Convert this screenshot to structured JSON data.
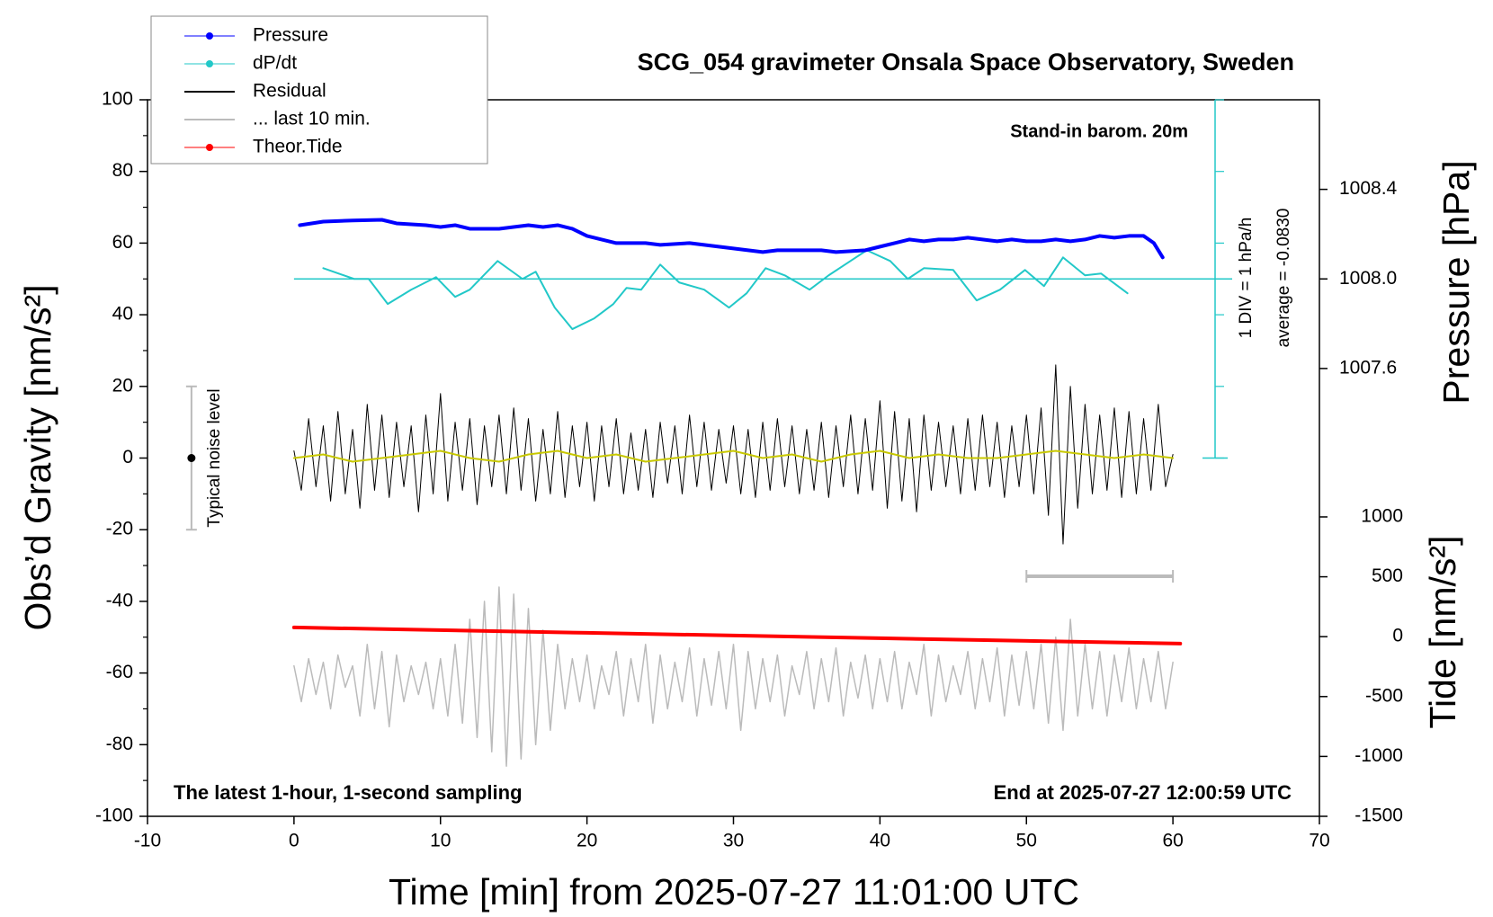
{
  "chart_data": {
    "type": "line",
    "title": "SCG_054 gravimeter Onsala Space Observatory, Sweden",
    "x_label": "Time [min] from 2025-07-27 11:01:00 UTC",
    "y_label": "Obs’d Gravity [nm/s²]",
    "y2_label": "Pressure [hPa]",
    "y3_label": "Tide [nm/s²]",
    "xlim": [
      -10,
      70
    ],
    "xticks": [
      -10,
      0,
      10,
      20,
      30,
      40,
      50,
      60,
      70
    ],
    "ylim": [
      -100,
      100
    ],
    "yticks": [
      -100,
      -80,
      -60,
      -40,
      -20,
      0,
      20,
      40,
      60,
      80,
      100
    ],
    "y2lim": [
      1005.6,
      1008.8
    ],
    "y2ticks": [
      1007.6,
      {
        "value": 1008.0,
        "label": "1008.0"
      },
      1008.4
    ],
    "y3lim": [
      -1500,
      4483
    ],
    "y3ticks": [
      -1500,
      -1000,
      -500,
      0,
      500,
      1000
    ],
    "legend": "top-left",
    "series": [
      {
        "name": "... last 10 min.",
        "color": "#bbbbbb",
        "axis": "y",
        "width": 1.5,
        "legend_marker": false,
        "x": [
          0,
          0.5,
          1,
          1.5,
          2,
          2.5,
          3,
          3.5,
          4,
          4.5,
          5,
          5.5,
          6,
          6.5,
          7,
          7.5,
          8,
          8.5,
          9,
          9.5,
          10,
          10.5,
          11,
          11.5,
          12,
          12.5,
          13,
          13.5,
          14,
          14.5,
          15,
          15.5,
          16,
          16.5,
          17,
          17.5,
          18,
          18.5,
          19,
          19.5,
          20,
          20.5,
          21,
          21.5,
          22,
          22.5,
          23,
          23.5,
          24,
          24.5,
          25,
          25.5,
          26,
          26.5,
          27,
          27.5,
          28,
          28.5,
          29,
          29.5,
          30,
          30.5,
          31,
          31.5,
          32,
          32.5,
          33,
          33.5,
          34,
          34.5,
          35,
          35.5,
          36,
          36.5,
          37,
          37.5,
          38,
          38.5,
          39,
          39.5,
          40,
          40.5,
          41,
          41.5,
          42,
          42.5,
          43,
          43.5,
          44,
          44.5,
          45,
          45.5,
          46,
          46.5,
          47,
          47.5,
          48,
          48.5,
          49,
          49.5,
          50,
          50.5,
          51,
          51.5,
          52,
          52.5,
          53,
          53.5,
          54,
          54.5,
          55,
          55.5,
          56,
          56.5,
          57,
          57.5,
          58,
          58.5,
          59,
          59.5,
          60
        ],
        "values": [
          -58,
          -68,
          -56,
          -66,
          -57,
          -70,
          -55,
          -64,
          -58,
          -72,
          -52,
          -70,
          -54,
          -75,
          -55,
          -68,
          -58,
          -66,
          -57,
          -70,
          -56,
          -72,
          -52,
          -74,
          -45,
          -78,
          -40,
          -82,
          -36,
          -86,
          -38,
          -84,
          -42,
          -80,
          -48,
          -76,
          -52,
          -70,
          -56,
          -68,
          -55,
          -70,
          -58,
          -66,
          -54,
          -72,
          -56,
          -68,
          -52,
          -74,
          -55,
          -70,
          -57,
          -68,
          -53,
          -72,
          -56,
          -69,
          -54,
          -70,
          -52,
          -76,
          -54,
          -70,
          -56,
          -68,
          -55,
          -72,
          -58,
          -66,
          -54,
          -70,
          -56,
          -68,
          -53,
          -72,
          -57,
          -67,
          -55,
          -70,
          -56,
          -68,
          -54,
          -70,
          -57,
          -66,
          -52,
          -72,
          -55,
          -68,
          -58,
          -66,
          -54,
          -70,
          -56,
          -68,
          -53,
          -72,
          -55,
          -69,
          -54,
          -70,
          -52,
          -74,
          -50,
          -76,
          -45,
          -72,
          -52,
          -70,
          -54,
          -72,
          -55,
          -68,
          -53,
          -70,
          -56,
          -68,
          -54,
          -70,
          -57
        ]
      },
      {
        "name": "Theor.Tide",
        "color": "#ff0000",
        "axis": "y3",
        "width": 4,
        "legend_marker": true,
        "x": [
          0,
          20,
          40,
          60.5
        ],
        "values": [
          77,
          32,
          -13,
          -58
        ]
      },
      {
        "name": "Residual",
        "color": "#000000",
        "axis": "y",
        "width": 1,
        "legend_marker": false,
        "x": [
          0,
          0.5,
          1,
          1.5,
          2,
          2.5,
          3,
          3.5,
          4,
          4.5,
          5,
          5.5,
          6,
          6.5,
          7,
          7.5,
          8,
          8.5,
          9,
          9.5,
          10,
          10.5,
          11,
          11.5,
          12,
          12.5,
          13,
          13.5,
          14,
          14.5,
          15,
          15.5,
          16,
          16.5,
          17,
          17.5,
          18,
          18.5,
          19,
          19.5,
          20,
          20.5,
          21,
          21.5,
          22,
          22.5,
          23,
          23.5,
          24,
          24.5,
          25,
          25.5,
          26,
          26.5,
          27,
          27.5,
          28,
          28.5,
          29,
          29.5,
          30,
          30.5,
          31,
          31.5,
          32,
          32.5,
          33,
          33.5,
          34,
          34.5,
          35,
          35.5,
          36,
          36.5,
          37,
          37.5,
          38,
          38.5,
          39,
          39.5,
          40,
          40.5,
          41,
          41.5,
          42,
          42.5,
          43,
          43.5,
          44,
          44.5,
          45,
          45.5,
          46,
          46.5,
          47,
          47.5,
          48,
          48.5,
          49,
          49.5,
          50,
          50.5,
          51,
          51.5,
          52,
          52.5,
          53,
          53.5,
          54,
          54.5,
          55,
          55.5,
          56,
          56.5,
          57,
          57.5,
          58,
          58.5,
          59,
          59.5,
          60
        ],
        "values": [
          2,
          -9,
          11,
          -8,
          9,
          -12,
          13,
          -10,
          8,
          -14,
          15,
          -9,
          12,
          -11,
          10,
          -8,
          9,
          -15,
          12,
          -10,
          18,
          -12,
          10,
          -9,
          11,
          -13,
          9,
          -8,
          12,
          -10,
          14,
          -9,
          11,
          -12,
          8,
          -10,
          13,
          -11,
          9,
          -8,
          10,
          -12,
          9,
          -8,
          11,
          -10,
          7,
          -9,
          8,
          -11,
          10,
          -7,
          9,
          -10,
          12,
          -8,
          10,
          -9,
          8,
          -7,
          9,
          -10,
          8,
          -11,
          10,
          -9,
          11,
          -8,
          9,
          -10,
          8,
          -9,
          10,
          -11,
          9,
          -8,
          12,
          -10,
          11,
          -9,
          16,
          -14,
          13,
          -12,
          11,
          -15,
          12,
          -9,
          10,
          -8,
          9,
          -10,
          11,
          -9,
          12,
          -8,
          10,
          -11,
          9,
          -8,
          12,
          -10,
          14,
          -16,
          26,
          -24,
          20,
          -14,
          15,
          -10,
          12,
          -9,
          14,
          -11,
          13,
          -10,
          11,
          -9,
          15,
          -8,
          1
        ]
      },
      {
        "color": "#c8c800",
        "axis": "y",
        "width": 2,
        "x": [
          0,
          2,
          4,
          6,
          8,
          10,
          12,
          14,
          16,
          18,
          20,
          22,
          24,
          26,
          28,
          30,
          32,
          34,
          36,
          38,
          40,
          42,
          44,
          46,
          48,
          50,
          52,
          54,
          56,
          58,
          60
        ],
        "values": [
          0,
          1,
          -1,
          0,
          1,
          2,
          0,
          -1,
          1,
          2,
          0,
          1,
          -1,
          0,
          1,
          2,
          0,
          1,
          -1,
          1,
          2,
          0,
          1,
          0,
          0,
          1,
          2,
          1,
          0,
          1,
          0
        ]
      },
      {
        "name": "dP/dt",
        "color": "#22c8c8",
        "axis": "y",
        "width": 2,
        "legend_marker": true,
        "x": [
          2.0,
          4.1,
          5.1,
          6.4,
          8.0,
          9.7,
          11.0,
          12.0,
          13.9,
          15.6,
          16.5,
          17.8,
          19.0,
          20.5,
          21.8,
          22.7,
          23.7,
          25.0,
          26.3,
          28.0,
          29.7,
          30.9,
          32.2,
          33.5,
          35.2,
          36.5,
          37.8,
          39.1,
          40.7,
          41.9,
          43.0,
          45.0,
          46.6,
          48.2,
          49.9,
          51.2,
          52.5,
          54.0,
          55.1,
          56.9
        ],
        "values": [
          53,
          50,
          50,
          43,
          47,
          50.5,
          45,
          47,
          55,
          50,
          52,
          42,
          36,
          39,
          43,
          47.5,
          47,
          54,
          49,
          47,
          42,
          46,
          53,
          51,
          47,
          51,
          54.5,
          58,
          55,
          50,
          53,
          52.5,
          44,
          47,
          52.5,
          48,
          56,
          51,
          51.5,
          46
        ]
      },
      {
        "name": "Pressure",
        "color": "#0000ff",
        "axis": "y2",
        "width": 4,
        "legend_marker": true,
        "x": [
          0.4,
          2,
          4,
          6,
          7,
          9,
          10,
          11,
          12,
          14,
          16,
          17,
          18,
          19,
          20,
          22,
          24,
          25,
          27,
          29,
          31,
          32,
          33,
          35,
          36,
          37,
          39,
          40,
          41,
          42,
          43,
          44,
          45,
          46,
          47,
          48,
          49,
          50,
          51,
          52,
          53,
          54,
          55,
          56,
          57,
          58,
          58.7,
          59.3
        ],
        "values": [
          1008.24,
          1008.256,
          1008.261,
          1008.264,
          1008.248,
          1008.24,
          1008.232,
          1008.24,
          1008.224,
          1008.224,
          1008.24,
          1008.232,
          1008.24,
          1008.224,
          1008.192,
          1008.16,
          1008.16,
          1008.152,
          1008.16,
          1008.144,
          1008.128,
          1008.12,
          1008.128,
          1008.128,
          1008.128,
          1008.12,
          1008.128,
          1008.144,
          1008.16,
          1008.176,
          1008.168,
          1008.176,
          1008.176,
          1008.184,
          1008.176,
          1008.168,
          1008.176,
          1008.168,
          1008.168,
          1008.176,
          1008.168,
          1008.176,
          1008.192,
          1008.184,
          1008.192,
          1008.192,
          1008.16,
          1008.096
        ]
      }
    ],
    "legend_order": [
      5,
      4,
      2,
      0,
      1
    ],
    "noise_bar": {
      "x": -7,
      "low": -20,
      "center": 0,
      "high": 20,
      "label": "Typical noise level"
    },
    "window_bar": {
      "x": [
        50,
        60
      ],
      "y": -33
    },
    "annotations": {
      "barometer": "Stand-in barom. 20m",
      "dpdt_scale": "1 DIV = 1 hPa/h",
      "dpdt_average": "average = -0.0830",
      "sampling": "The latest 1-hour, 1-second sampling",
      "end_time": "End at 2025-07-27 12:00:59 UTC"
    }
  }
}
